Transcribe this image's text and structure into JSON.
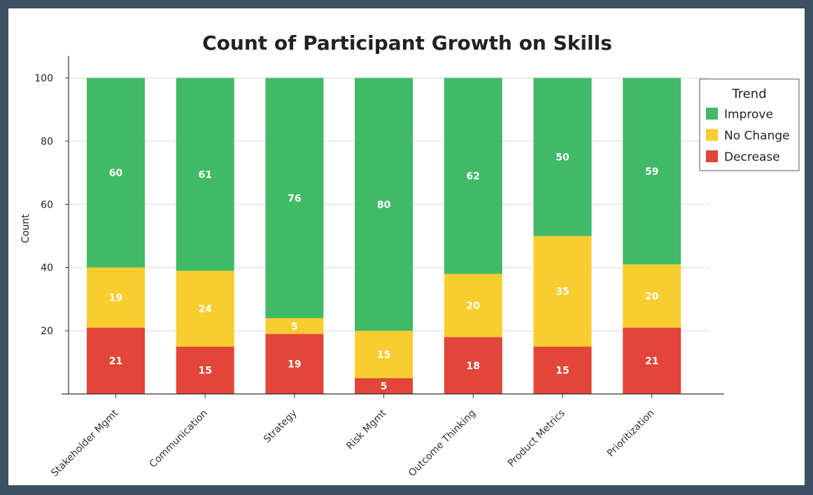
{
  "chart_data": {
    "type": "bar",
    "stacked": true,
    "title": "Count of Participant Growth on Skills",
    "xlabel": "",
    "ylabel": "Count",
    "ylim": [
      0,
      104
    ],
    "yticks": [
      20,
      40,
      60,
      80,
      100
    ],
    "grid": true,
    "categories": [
      "Stakeholder Mgmt",
      "Communication",
      "Strategy",
      "Risk Mgmt",
      "Outcome Thinking",
      "Product Metrics",
      "Prioritization"
    ],
    "series": [
      {
        "name": "Decrease",
        "color": "#e34539",
        "values": [
          21,
          15,
          19,
          5,
          18,
          15,
          21
        ]
      },
      {
        "name": "No Change",
        "color": "#f8cd2f",
        "values": [
          19,
          24,
          5,
          15,
          20,
          35,
          20
        ]
      },
      {
        "name": "Improve",
        "color": "#40ba67",
        "values": [
          60,
          61,
          76,
          80,
          62,
          50,
          59
        ]
      }
    ],
    "legend": {
      "title": "Trend",
      "placement": "top-right",
      "order": [
        "Improve",
        "No Change",
        "Decrease"
      ]
    }
  }
}
